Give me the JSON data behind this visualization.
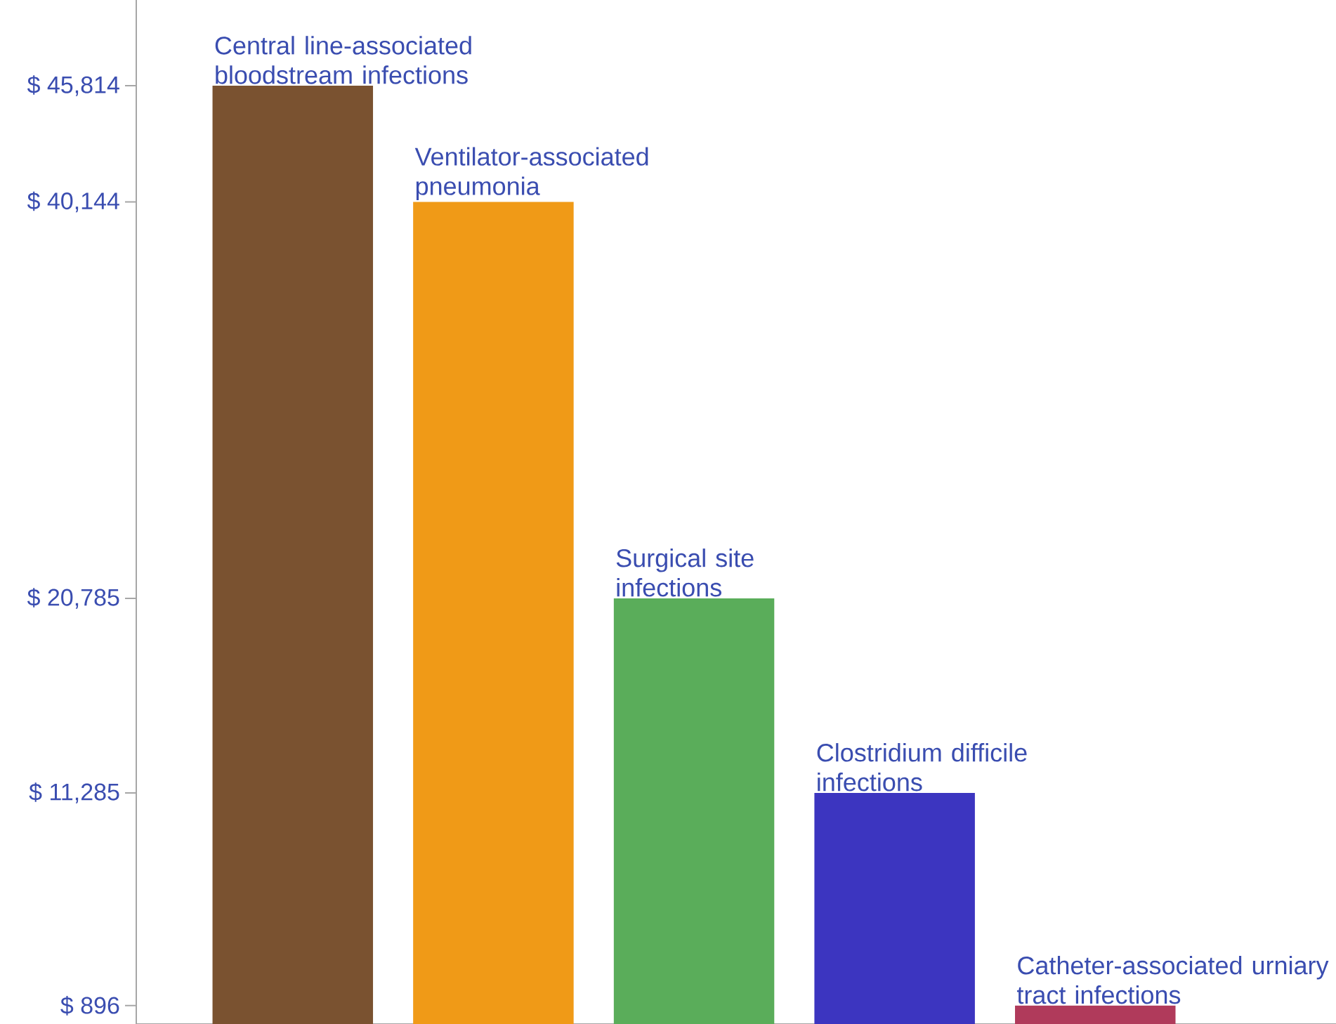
{
  "chart_data": {
    "type": "bar",
    "categories": [
      "Central line-associated bloodstream infections",
      "Ventilator-associated pneumonia",
      "Surgical site infections",
      "Clostridium difficile infections",
      "Catheter-associated urniary tract infections"
    ],
    "values": [
      45814,
      40144,
      20785,
      11285,
      896
    ],
    "colors": [
      "#7a5230",
      "#f09a17",
      "#5aad5a",
      "#3c35c0",
      "#b03a5b"
    ],
    "ylim": [
      0,
      50000
    ],
    "yticks": [
      {
        "value": 896,
        "label": "$ 896"
      },
      {
        "value": 11285,
        "label": "$ 11,285"
      },
      {
        "value": 20785,
        "label": "$ 20,785"
      },
      {
        "value": 40144,
        "label": "$ 40,144"
      },
      {
        "value": 45814,
        "label": "$ 45,814"
      }
    ]
  }
}
